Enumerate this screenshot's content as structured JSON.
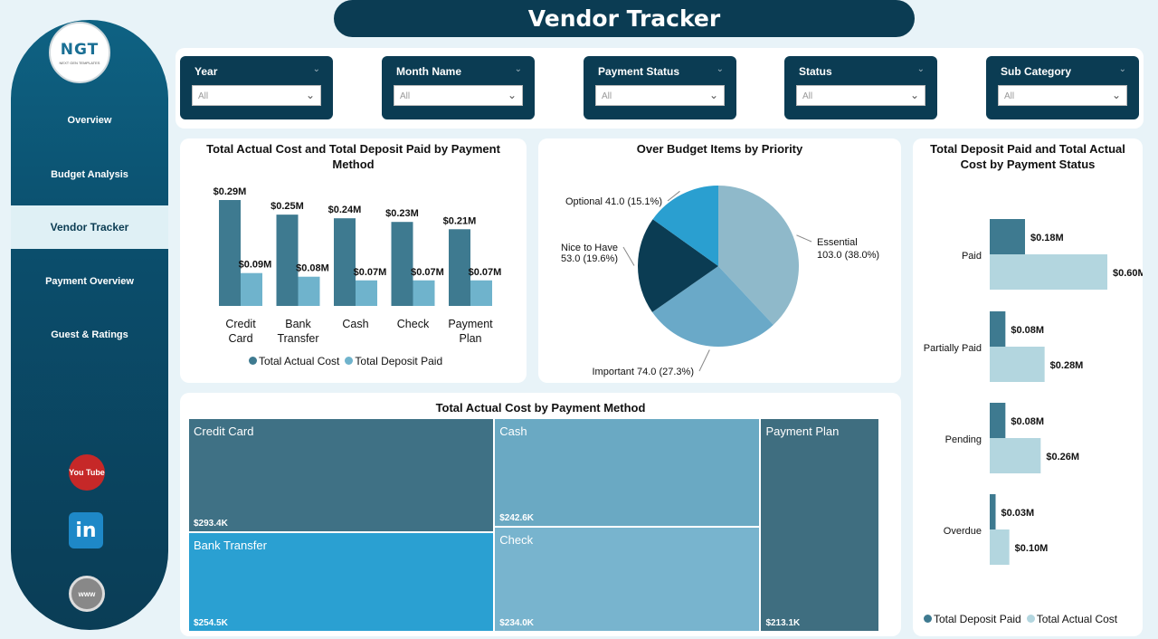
{
  "title": "Vendor Tracker",
  "logo": {
    "text": "NGT",
    "sub": "NEXT GEN TEMPLATES"
  },
  "sidebar": {
    "items": [
      {
        "label": "Overview",
        "active": false
      },
      {
        "label": "Budget Analysis",
        "active": false
      },
      {
        "label": "Vendor Tracker",
        "active": true
      },
      {
        "label": "Payment Overview",
        "active": false
      },
      {
        "label": "Guest & Ratings",
        "active": false
      }
    ],
    "social": [
      {
        "icon": "youtube-icon",
        "text": "You Tube"
      },
      {
        "icon": "linkedin-icon",
        "text": "in"
      },
      {
        "icon": "website-icon",
        "text": "www"
      }
    ]
  },
  "filters": [
    {
      "label": "Year",
      "value": "All"
    },
    {
      "label": "Month Name",
      "value": "All"
    },
    {
      "label": "Payment Status",
      "value": "All"
    },
    {
      "label": "Status",
      "value": "All"
    },
    {
      "label": "Sub Category",
      "value": "All"
    }
  ],
  "colors": {
    "dark": "#0b3c53",
    "actual": "#3e7a90",
    "deposit": "#6fb3cc",
    "light": "#b3d6df"
  },
  "chart1": {
    "title": "Total Actual Cost and Total Deposit Paid by Payment Method",
    "legend": [
      "Total Actual Cost",
      "Total Deposit Paid"
    ]
  },
  "chart2": {
    "title": "Over Budget Items by Priority"
  },
  "chart3": {
    "title": "Total Deposit Paid and Total Actual Cost by Payment Status",
    "legend": [
      "Total Deposit Paid",
      "Total Actual Cost"
    ]
  },
  "chart4": {
    "title": "Total Actual Cost by Payment Method"
  },
  "chart_data": [
    {
      "type": "bar",
      "title": "Total Actual Cost and Total Deposit Paid by Payment Method",
      "categories": [
        "Credit Card",
        "Bank Transfer",
        "Cash",
        "Check",
        "Payment Plan"
      ],
      "series": [
        {
          "name": "Total Actual Cost",
          "values": [
            0.29,
            0.25,
            0.24,
            0.23,
            0.21
          ],
          "labels": [
            "$0.29M",
            "$0.25M",
            "$0.24M",
            "$0.23M",
            "$0.21M"
          ]
        },
        {
          "name": "Total Deposit Paid",
          "values": [
            0.09,
            0.08,
            0.07,
            0.07,
            0.07
          ],
          "labels": [
            "$0.09M",
            "$0.08M",
            "$0.07M",
            "$0.07M",
            "$0.07M"
          ]
        }
      ],
      "ylim": [
        0,
        0.29
      ]
    },
    {
      "type": "pie",
      "title": "Over Budget Items by Priority",
      "slices": [
        {
          "label": "Essential",
          "value": 103.0,
          "text": "103.0 (38.0%)",
          "color": "#8fb9ca"
        },
        {
          "label": "Important",
          "value": 74.0,
          "text": "74.0 (27.3%)",
          "color": "#6aa9c8"
        },
        {
          "label": "Nice to Have",
          "value": 53.0,
          "text": "53.0 (19.6%)",
          "color": "#0b3c53"
        },
        {
          "label": "Optional",
          "value": 41.0,
          "text": "41.0 (15.1%)",
          "color": "#2a9fd0"
        }
      ]
    },
    {
      "type": "bar",
      "orientation": "horizontal",
      "title": "Total Deposit Paid and Total Actual Cost by Payment Status",
      "categories": [
        "Paid",
        "Partially Paid",
        "Pending",
        "Overdue"
      ],
      "series": [
        {
          "name": "Total Deposit Paid",
          "values": [
            0.18,
            0.08,
            0.08,
            0.03
          ],
          "labels": [
            "$0.18M",
            "$0.08M",
            "$0.08M",
            "$0.03M"
          ]
        },
        {
          "name": "Total Actual Cost",
          "values": [
            0.6,
            0.28,
            0.26,
            0.1
          ],
          "labels": [
            "$0.60M",
            "$0.28M",
            "$0.26M",
            "$0.10M"
          ]
        }
      ],
      "xlim": [
        0,
        0.6
      ]
    },
    {
      "type": "treemap",
      "title": "Total Actual Cost by Payment Method",
      "items": [
        {
          "name": "Credit Card",
          "value": 293.4,
          "label": "$293.4K",
          "color": "#3f7185"
        },
        {
          "name": "Cash",
          "value": 242.6,
          "label": "$242.6K",
          "color": "#6aa9c3"
        },
        {
          "name": "Payment Plan",
          "value": 213.1,
          "label": "$213.1K",
          "color": "#3f6e80"
        },
        {
          "name": "Bank Transfer",
          "value": 254.5,
          "label": "$254.5K",
          "color": "#2aa0d2"
        },
        {
          "name": "Check",
          "value": 234.0,
          "label": "$234.0K",
          "color": "#78b4ce"
        }
      ]
    }
  ]
}
